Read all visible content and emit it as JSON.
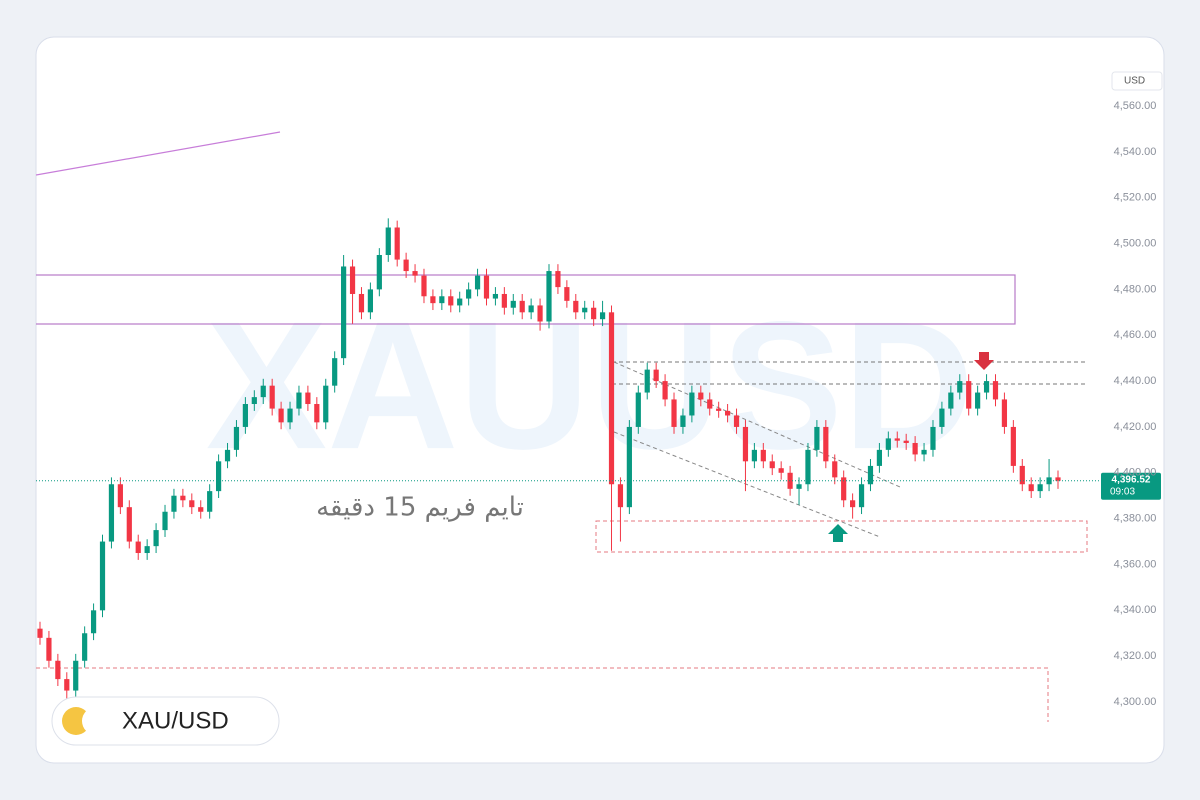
{
  "chart_data": {
    "type": "candlestick",
    "symbol": "XAU/USD",
    "watermark": "XAUUSD",
    "annotation": "تایم فریم 15 دقیقه",
    "axis_unit": "USD",
    "last_price_label": "4,396.52",
    "countdown": "09:03",
    "up_color": "#089981",
    "down_color": "#f23645",
    "ylim": [
      4273.4,
      4590.1
    ],
    "yticks": [
      {
        "value": 4300,
        "label": "4,300.00"
      },
      {
        "value": 4320,
        "label": "4,320.00"
      },
      {
        "value": 4340,
        "label": "4,340.00"
      },
      {
        "value": 4360,
        "label": "4,360.00"
      },
      {
        "value": 4380,
        "label": "4,380.00"
      },
      {
        "value": 4400,
        "label": "4,400.00"
      },
      {
        "value": 4420,
        "label": "4,420.00"
      },
      {
        "value": 4440,
        "label": "4,440.00"
      },
      {
        "value": 4460,
        "label": "4,460.00"
      },
      {
        "value": 4480,
        "label": "4,480.00"
      },
      {
        "value": 4500,
        "label": "4,500.00"
      },
      {
        "value": 4520,
        "label": "4,520.00"
      },
      {
        "value": 4540,
        "label": "4,540.00"
      },
      {
        "value": 4560,
        "label": "4,560.00"
      }
    ],
    "open": [
      4332,
      4328,
      4318,
      4310,
      4305,
      4318,
      4330,
      4340,
      4370,
      4395,
      4385,
      4370,
      4365,
      4368,
      4375,
      4383,
      4390,
      4388,
      4385,
      4383,
      4392,
      4405,
      4410,
      4420,
      4430,
      4433,
      4438,
      4428,
      4422,
      4428,
      4435,
      4430,
      4422,
      4438,
      4450,
      4490,
      4478,
      4470,
      4480,
      4495,
      4507,
      4493,
      4488,
      4486,
      4477,
      4474,
      4477,
      4473,
      4476,
      4480,
      4486,
      4476,
      4478,
      4472,
      4475,
      4470,
      4473,
      4466,
      4488,
      4481,
      4475,
      4470,
      4472,
      4467,
      4470,
      4395,
      4385,
      4420,
      4435,
      4445,
      4440,
      4432,
      4420,
      4425,
      4435,
      4432,
      4428,
      4427,
      4425,
      4420,
      4405,
      4410,
      4405,
      4402,
      4400,
      4393,
      4395,
      4410,
      4420,
      4405,
      4398,
      4388,
      4385,
      4395,
      4403,
      4410,
      4415,
      4414,
      4413,
      4408,
      4410,
      4420,
      4428,
      4435,
      4440,
      4428,
      4435,
      4440,
      4432,
      4420,
      4403,
      4395,
      4392,
      4395,
      4398
    ],
    "high": [
      4335,
      4331,
      4321,
      4313,
      4321,
      4333,
      4343,
      4373,
      4398,
      4398,
      4388,
      4373,
      4371,
      4378,
      4386,
      4393,
      4393,
      4391,
      4388,
      4395,
      4408,
      4413,
      4423,
      4433,
      4436,
      4441,
      4441,
      4431,
      4431,
      4438,
      4438,
      4433,
      4441,
      4453,
      4495,
      4493,
      4481,
      4483,
      4498,
      4511,
      4510,
      4496,
      4491,
      4489,
      4480,
      4480,
      4480,
      4479,
      4483,
      4489,
      4489,
      4481,
      4481,
      4478,
      4478,
      4476,
      4476,
      4491,
      4491,
      4484,
      4478,
      4475,
      4475,
      4475,
      4473,
      4398,
      4423,
      4438,
      4448,
      4448,
      4443,
      4435,
      4428,
      4438,
      4438,
      4435,
      4431,
      4430,
      4428,
      4423,
      4413,
      4413,
      4408,
      4405,
      4403,
      4398,
      4413,
      4423,
      4423,
      4408,
      4401,
      4391,
      4398,
      4406,
      4413,
      4418,
      4418,
      4417,
      4416,
      4413,
      4423,
      4431,
      4438,
      4443,
      4443,
      4438,
      4443,
      4443,
      4435,
      4423,
      4406,
      4398,
      4398,
      4406,
      4401
    ],
    "low": [
      4325,
      4315,
      4307,
      4300,
      4302,
      4315,
      4327,
      4337,
      4367,
      4382,
      4367,
      4362,
      4362,
      4365,
      4372,
      4380,
      4385,
      4382,
      4380,
      4380,
      4389,
      4402,
      4407,
      4417,
      4427,
      4430,
      4425,
      4419,
      4419,
      4425,
      4427,
      4419,
      4419,
      4435,
      4447,
      4465,
      4467,
      4467,
      4477,
      4492,
      4490,
      4485,
      4483,
      4474,
      4471,
      4471,
      4470,
      4470,
      4473,
      4477,
      4473,
      4473,
      4469,
      4469,
      4467,
      4467,
      4462,
      4463,
      4478,
      4472,
      4467,
      4467,
      4464,
      4464,
      4366,
      4370,
      4382,
      4417,
      4432,
      4437,
      4429,
      4417,
      4417,
      4422,
      4429,
      4425,
      4424,
      4422,
      4417,
      4392,
      4402,
      4402,
      4399,
      4397,
      4390,
      4386,
      4392,
      4407,
      4402,
      4395,
      4385,
      4380,
      4382,
      4392,
      4400,
      4407,
      4411,
      4410,
      4405,
      4405,
      4407,
      4417,
      4425,
      4432,
      4425,
      4425,
      4432,
      4429,
      4417,
      4400,
      4392,
      4389,
      4389,
      4392,
      4393
    ],
    "close": [
      4328,
      4318,
      4310,
      4305,
      4318,
      4330,
      4340,
      4370,
      4395,
      4385,
      4370,
      4365,
      4368,
      4375,
      4383,
      4390,
      4388,
      4385,
      4383,
      4392,
      4405,
      4410,
      4420,
      4430,
      4433,
      4438,
      4428,
      4422,
      4428,
      4435,
      4430,
      4422,
      4438,
      4450,
      4490,
      4478,
      4470,
      4480,
      4495,
      4507,
      4493,
      4488,
      4486,
      4477,
      4474,
      4477,
      4473,
      4476,
      4480,
      4486,
      4476,
      4478,
      4472,
      4475,
      4470,
      4473,
      4466,
      4488,
      4481,
      4475,
      4470,
      4472,
      4467,
      4470,
      4395,
      4385,
      4420,
      4435,
      4445,
      4440,
      4432,
      4420,
      4425,
      4435,
      4432,
      4428,
      4427,
      4425,
      4420,
      4405,
      4410,
      4405,
      4402,
      4400,
      4393,
      4395,
      4410,
      4420,
      4405,
      4398,
      4388,
      4385,
      4395,
      4403,
      4410,
      4415,
      4414,
      4413,
      4408,
      4410,
      4420,
      4428,
      4435,
      4440,
      4428,
      4435,
      4440,
      4432,
      4420,
      4403,
      4395,
      4392,
      4395,
      4398,
      4396.52
    ]
  }
}
